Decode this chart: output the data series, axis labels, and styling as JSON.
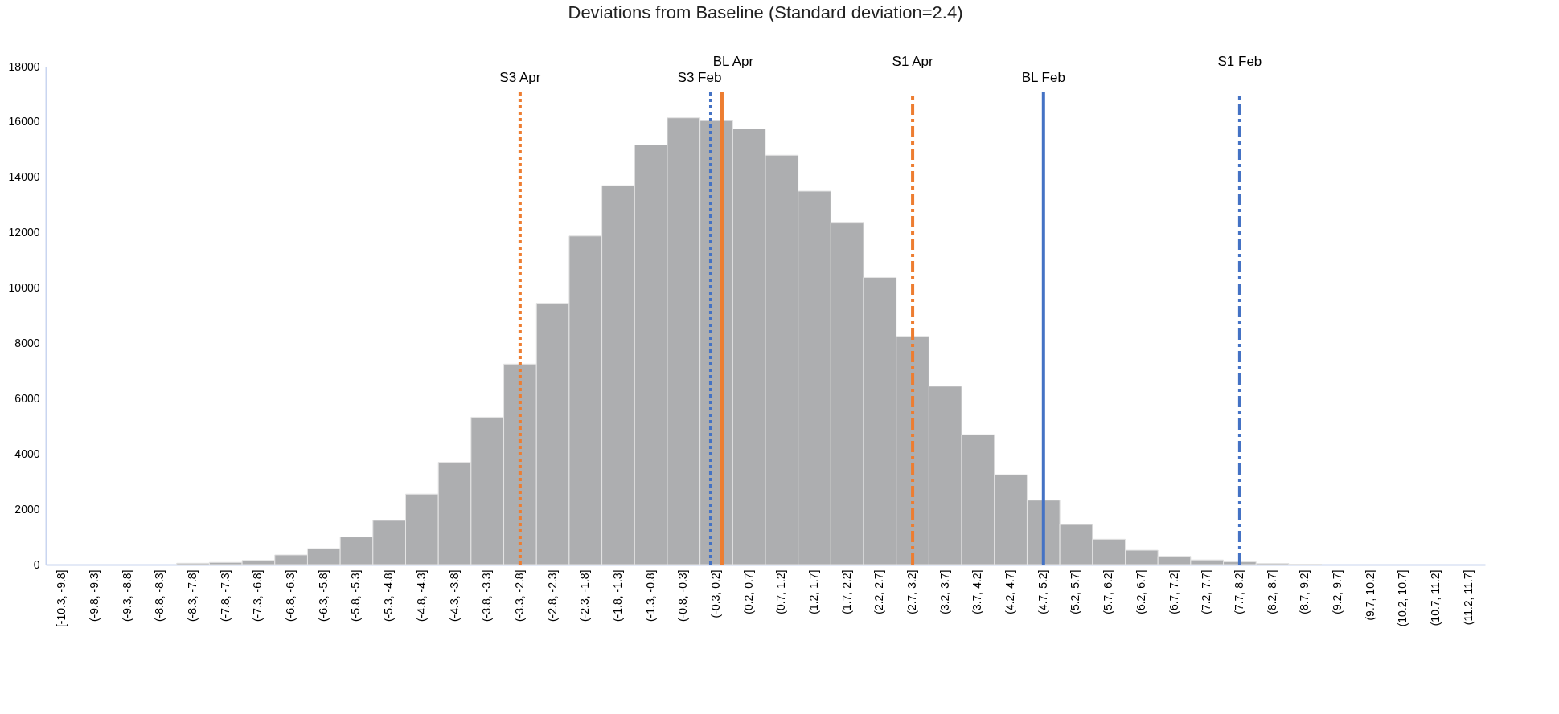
{
  "chart_data": {
    "type": "bar",
    "title": "Deviations from Baseline  (Standard deviation=2.4)",
    "categories": [
      "[-10.3, -9.8]",
      "(-9.8, -9.3]",
      "(-9.3, -8.8]",
      "(-8.8, -8.3]",
      "(-8.3, -7.8]",
      "(-7.8, -7.3]",
      "(-7.3, -6.8]",
      "(-6.8, -6.3]",
      "(-6.3, -5.8]",
      "(-5.8, -5.3]",
      "(-5.3, -4.8]",
      "(-4.8, -4.3]",
      "(-4.3, -3.8]",
      "(-3.8, -3.3]",
      "(-3.3, -2.8]",
      "(-2.8, -2.3]",
      "(-2.3, -1.8]",
      "(-1.8, -1.3]",
      "(-1.3, -0.8]",
      "(-0.8, -0.3]",
      "(-0.3, 0.2]",
      "(0.2, 0.7]",
      "(0.7, 1.2]",
      "(1.2, 1.7]",
      "(1.7, 2.2]",
      "(2.2, 2.7]",
      "(2.7, 3.2]",
      "(3.2, 3.7]",
      "(3.7, 4.2]",
      "(4.2, 4.7]",
      "(4.7, 5.2]",
      "(5.2, 5.7]",
      "(5.7, 6.2]",
      "(6.2, 6.7]",
      "(6.7, 7.2]",
      "(7.2, 7.7]",
      "(7.7, 8.2]",
      "(8.2, 8.7]",
      "(8.7, 9.2]",
      "(9.2, 9.7]",
      "(9.7, 10.2]",
      "(10.2, 10.7]",
      "(10.7, 11.2]",
      "(11.2, 11.7]"
    ],
    "values": [
      0,
      0,
      0,
      0,
      50,
      80,
      150,
      350,
      580,
      1000,
      1600,
      2550,
      3700,
      5330,
      7250,
      9450,
      11880,
      13700,
      15170,
      16150,
      16050,
      15750,
      14800,
      13500,
      12350,
      10380,
      8250,
      6450,
      4700,
      3250,
      2330,
      1450,
      920,
      520,
      300,
      170,
      100,
      40,
      10,
      0,
      0,
      0,
      0,
      0
    ],
    "color": "#adaeb0",
    "ylim": [
      0,
      18000
    ],
    "yticks": [
      0,
      2000,
      4000,
      6000,
      8000,
      10000,
      12000,
      14000,
      16000,
      18000
    ],
    "grid": false,
    "ref_lines": [
      {
        "axis": "x",
        "value": "(-3.3, -2.8]",
        "label": "S3 Apr",
        "color": "#ed7d31",
        "line_style": "dotted"
      },
      {
        "axis": "x",
        "value": "(-0.3, 0.2]",
        "label": "BL Apr",
        "color": "#ed7d31",
        "line_style": "solid"
      },
      {
        "axis": "x",
        "value": "(-0.3, 0.2]",
        "label": "S3 Feb",
        "color": "#4472c4",
        "line_style": "dotted"
      },
      {
        "axis": "x",
        "value": "(2.7, 3.2]",
        "label": "S1 Apr",
        "color": "#ed7d31",
        "line_style": "dashed"
      },
      {
        "axis": "x",
        "value": "(4.7, 5.2]",
        "label": "BL Feb",
        "color": "#4472c4",
        "line_style": "solid"
      },
      {
        "axis": "x",
        "value": "(7.7, 8.2]",
        "label": "S1 Feb",
        "color": "#4472c4",
        "line_style": "dashed"
      }
    ]
  }
}
